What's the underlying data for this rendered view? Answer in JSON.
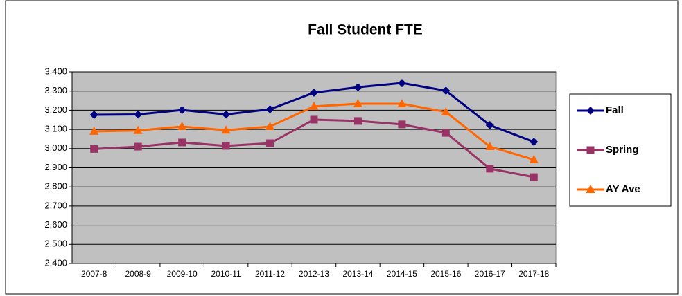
{
  "chart_data": {
    "type": "line",
    "title": "Fall Student FTE",
    "categories": [
      "2007-8",
      "2008-9",
      "2009-10",
      "2010-11",
      "2011-12",
      "2012-13",
      "2013-14",
      "2014-15",
      "2015-16",
      "2016-17",
      "2017-18"
    ],
    "series": [
      {
        "name": "Fall",
        "color": "#000080",
        "marker": "diamond",
        "values": [
          3176,
          3178,
          3201,
          3178,
          3205,
          3292,
          3320,
          3342,
          3302,
          3122,
          3035
        ]
      },
      {
        "name": "Spring",
        "color": "#993366",
        "marker": "square",
        "values": [
          2998,
          3010,
          3032,
          3014,
          3028,
          3151,
          3144,
          3126,
          3082,
          2895,
          2851
        ]
      },
      {
        "name": "AY Ave",
        "color": "#ff6600",
        "marker": "triangle",
        "values": [
          3090,
          3094,
          3115,
          3096,
          3115,
          3220,
          3234,
          3234,
          3191,
          3010,
          2942
        ]
      }
    ],
    "ylim": [
      2400,
      3400
    ],
    "yticks": [
      {
        "value": 2400,
        "label": "2,400"
      },
      {
        "value": 2500,
        "label": "2,500"
      },
      {
        "value": 2600,
        "label": "2,600"
      },
      {
        "value": 2700,
        "label": "2,700"
      },
      {
        "value": 2800,
        "label": "2,800"
      },
      {
        "value": 2900,
        "label": "2,900"
      },
      {
        "value": 3000,
        "label": "3,000"
      },
      {
        "value": 3100,
        "label": "3,100"
      },
      {
        "value": 3200,
        "label": "3,200"
      },
      {
        "value": 3300,
        "label": "3,300"
      },
      {
        "value": 3400,
        "label": "3,400"
      }
    ],
    "grid": true,
    "legend": "right",
    "plot_background": "#c0c0c0"
  }
}
